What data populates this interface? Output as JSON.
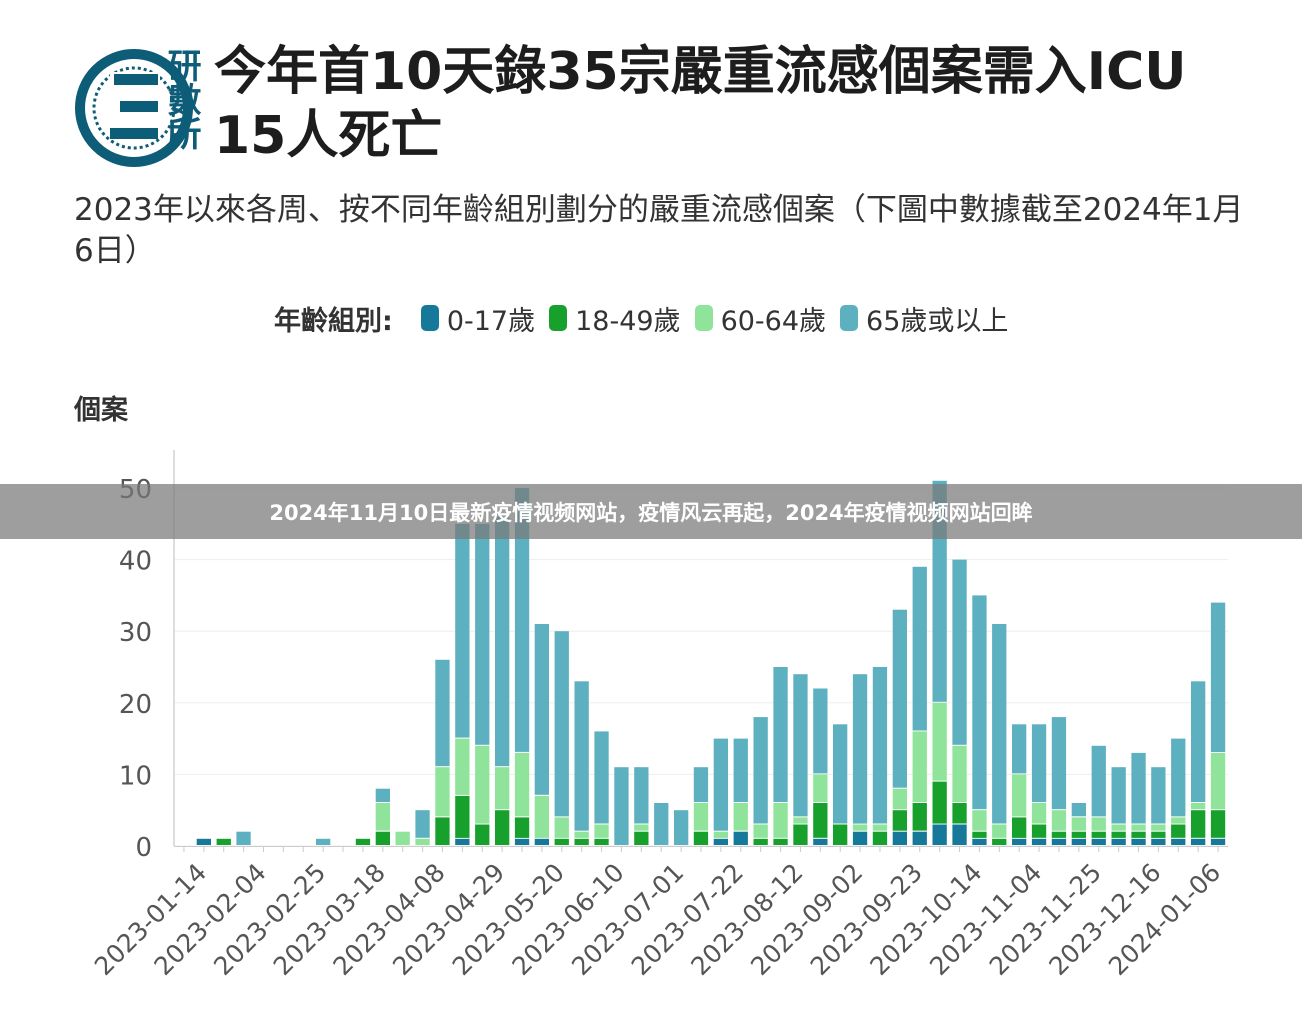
{
  "logo_text": "研數所",
  "title": "今年首10天錄35宗嚴重流感個案需入ICU 15人死亡",
  "subtitle": "2023年以來各周、按不同年齡組別劃分的嚴重流感個案（下圖中數據截至2024年1月6日）",
  "banner": "2024年11月10日最新疫情视频网站，疫情风云再起，2024年疫情视频网站回眸",
  "colors": {
    "age_0_17": "#16799a",
    "age_18_49": "#17a12c",
    "age_60_64": "#8fe39a",
    "age_65_plus": "#5db0c0",
    "axis": "#dddddd",
    "grid": "#eeeeee",
    "text": "#555555"
  },
  "chart_data": {
    "type": "bar",
    "stacked": true,
    "legend_title": "年齡組別:",
    "legend_placement": "top",
    "ylabel": "個案",
    "xlabel": "",
    "ylim": [
      0,
      50
    ],
    "yticks": [
      0,
      10,
      20,
      30,
      40,
      50
    ],
    "grid": true,
    "x_tick_labels": [
      "2023-01-14",
      "2023-02-04",
      "2023-02-25",
      "2023-03-18",
      "2023-04-08",
      "2023-04-29",
      "2023-05-20",
      "2023-06-10",
      "2023-07-01",
      "2023-07-22",
      "2023-08-12",
      "2023-09-02",
      "2023-09-23",
      "2023-10-14",
      "2023-11-04",
      "2023-11-25",
      "2023-12-16",
      "2024-01-06"
    ],
    "categories": [
      "2023-01-07",
      "2023-01-14",
      "2023-01-21",
      "2023-01-28",
      "2023-02-04",
      "2023-02-11",
      "2023-02-18",
      "2023-02-25",
      "2023-03-04",
      "2023-03-11",
      "2023-03-18",
      "2023-03-25",
      "2023-04-01",
      "2023-04-08",
      "2023-04-15",
      "2023-04-22",
      "2023-04-29",
      "2023-05-06",
      "2023-05-13",
      "2023-05-20",
      "2023-05-27",
      "2023-06-03",
      "2023-06-10",
      "2023-06-17",
      "2023-06-24",
      "2023-07-01",
      "2023-07-08",
      "2023-07-15",
      "2023-07-22",
      "2023-07-29",
      "2023-08-05",
      "2023-08-12",
      "2023-08-19",
      "2023-08-26",
      "2023-09-02",
      "2023-09-09",
      "2023-09-16",
      "2023-09-23",
      "2023-09-30",
      "2023-10-07",
      "2023-10-14",
      "2023-10-21",
      "2023-10-28",
      "2023-11-04",
      "2023-11-11",
      "2023-11-18",
      "2023-11-25",
      "2023-12-02",
      "2023-12-09",
      "2023-12-16",
      "2023-12-23",
      "2023-12-30",
      "2024-01-06"
    ],
    "series": [
      {
        "name": "0-17歲",
        "values": [
          0,
          1,
          0,
          0,
          0,
          0,
          0,
          0,
          0,
          0,
          0,
          0,
          0,
          0,
          1,
          0,
          0,
          1,
          1,
          0,
          0,
          0,
          0,
          0,
          0,
          0,
          0,
          1,
          2,
          0,
          0,
          0,
          1,
          0,
          2,
          0,
          2,
          2,
          3,
          3,
          1,
          0,
          1,
          1,
          1,
          1,
          1,
          1,
          1,
          1,
          1,
          1,
          1
        ]
      },
      {
        "name": "18-49歲",
        "values": [
          0,
          0,
          1,
          0,
          0,
          0,
          0,
          0,
          0,
          1,
          2,
          0,
          0,
          4,
          6,
          3,
          5,
          3,
          0,
          1,
          1,
          1,
          0,
          2,
          0,
          0,
          2,
          0,
          0,
          1,
          1,
          3,
          5,
          3,
          0,
          2,
          3,
          4,
          6,
          3,
          1,
          1,
          3,
          2,
          1,
          1,
          1,
          1,
          1,
          1,
          2,
          4,
          4
        ]
      },
      {
        "name": "60-64歲",
        "values": [
          0,
          0,
          0,
          0,
          0,
          0,
          0,
          0,
          0,
          0,
          4,
          2,
          1,
          7,
          8,
          11,
          6,
          9,
          6,
          3,
          1,
          2,
          0,
          1,
          0,
          0,
          4,
          1,
          4,
          2,
          5,
          1,
          4,
          0,
          1,
          1,
          3,
          10,
          11,
          8,
          3,
          2,
          6,
          3,
          3,
          2,
          2,
          1,
          1,
          1,
          1,
          1,
          8
        ]
      },
      {
        "name": "65歲或以上",
        "values": [
          0,
          0,
          0,
          2,
          0,
          0,
          0,
          1,
          0,
          0,
          2,
          0,
          4,
          15,
          30,
          31,
          35,
          37,
          24,
          26,
          21,
          13,
          11,
          8,
          6,
          5,
          5,
          13,
          9,
          15,
          19,
          20,
          12,
          14,
          21,
          22,
          25,
          23,
          31,
          26,
          30,
          28,
          7,
          11,
          13,
          2,
          10,
          8,
          10,
          8,
          11,
          17,
          21
        ]
      }
    ]
  }
}
